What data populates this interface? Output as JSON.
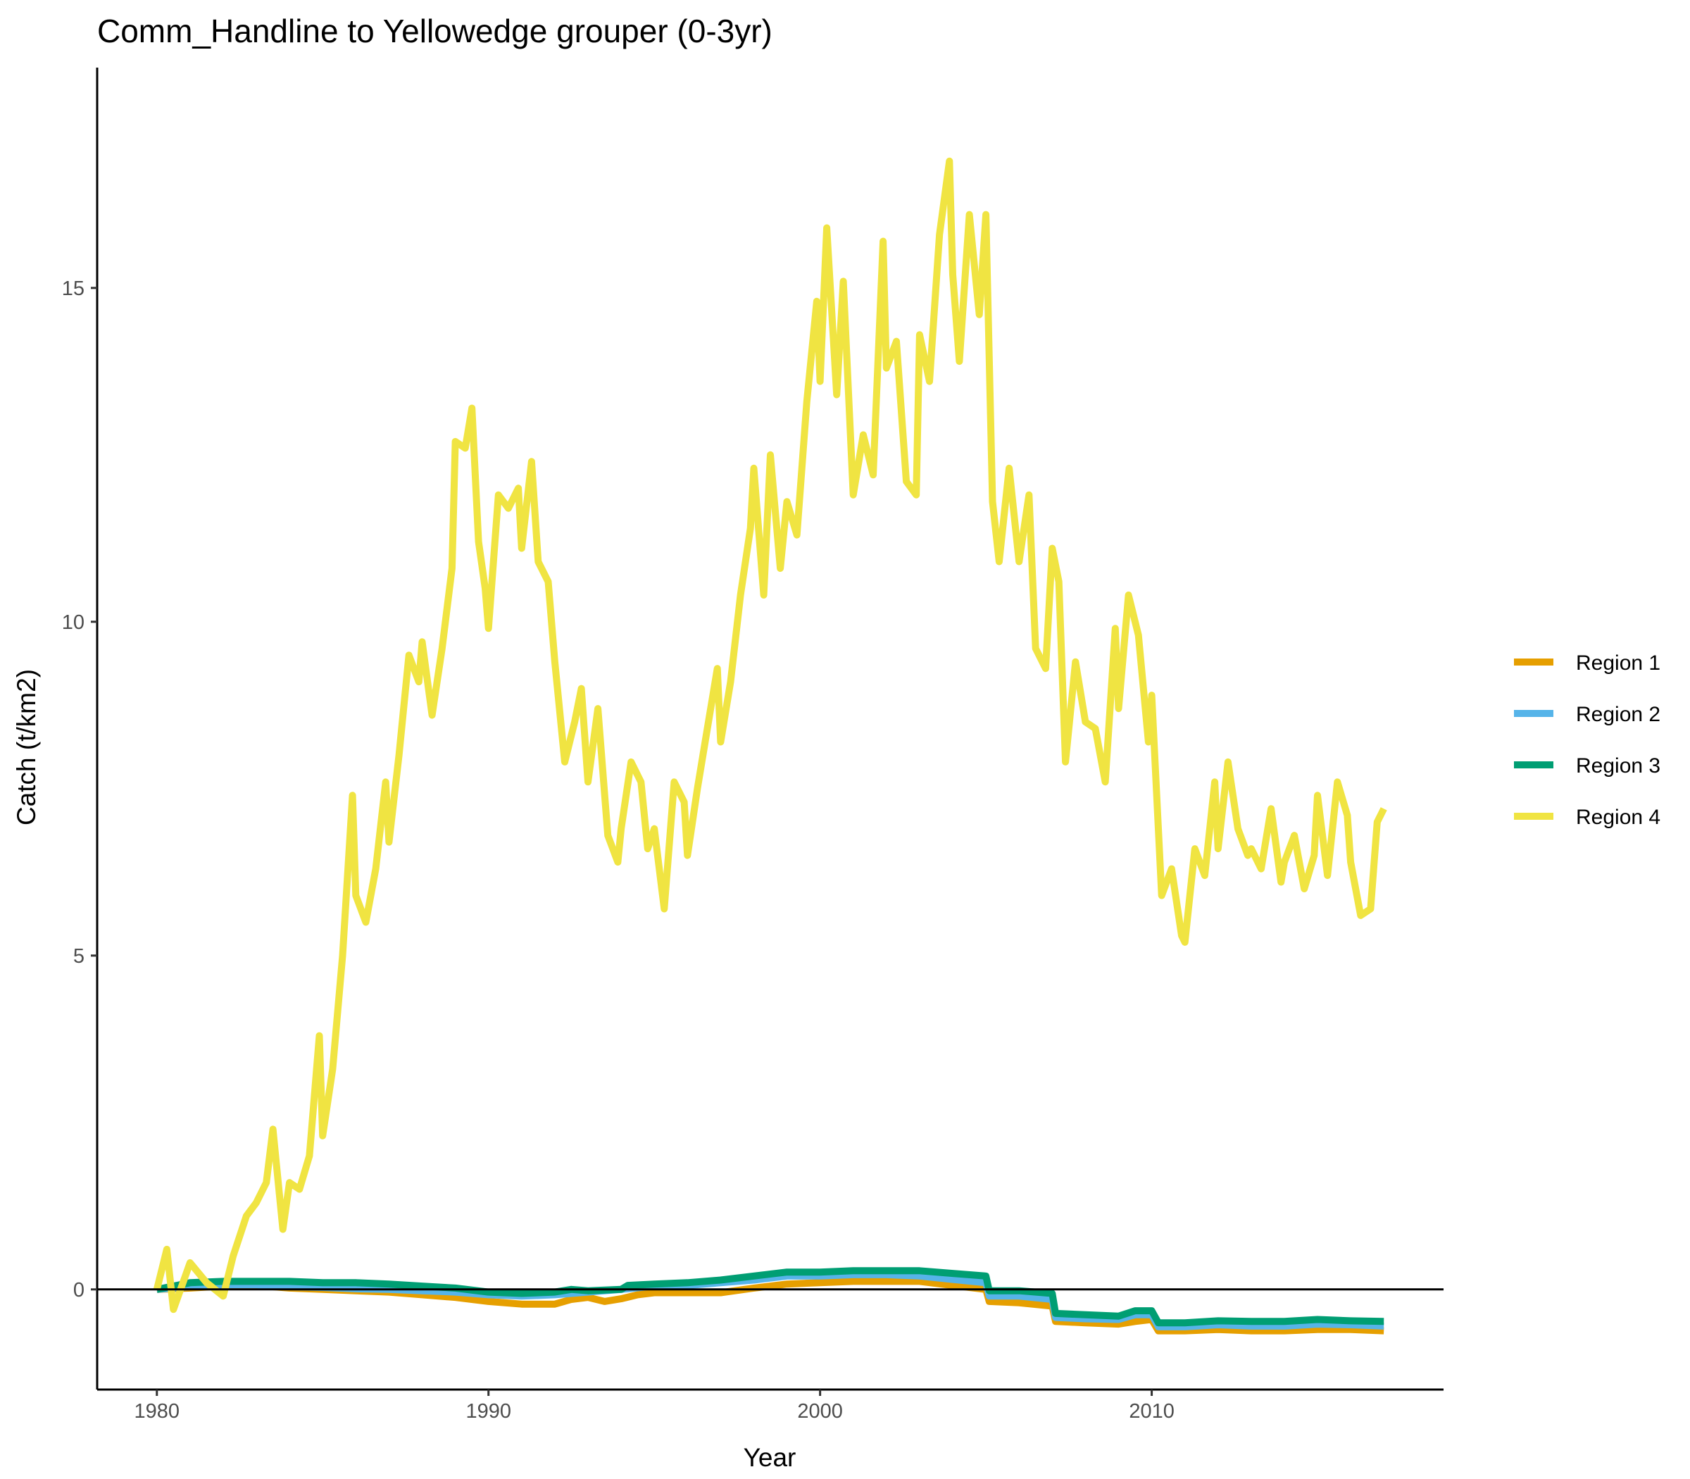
{
  "chart_data": {
    "type": "line",
    "title": "Comm_Handline to Yellowedge grouper (0-3yr)",
    "xlabel": "Year",
    "ylabel": "Catch (t/km2)",
    "xlim": [
      1978.2,
      2018.8
    ],
    "ylim": [
      -1.5,
      18.3
    ],
    "x_ticks": [
      1980,
      1990,
      2000,
      2010
    ],
    "y_ticks": [
      0,
      5,
      10,
      15
    ],
    "reference_line_y": 0,
    "grid": false,
    "legend_position": "right",
    "series": [
      {
        "name": "Region 1",
        "color": "#E69F00",
        "points": [
          [
            1980,
            0
          ],
          [
            1981,
            0.02
          ],
          [
            1982,
            0.05
          ],
          [
            1983,
            0.06
          ],
          [
            1984,
            0.02
          ],
          [
            1985,
            0.0
          ],
          [
            1986,
            -0.02
          ],
          [
            1987,
            -0.04
          ],
          [
            1988,
            -0.08
          ],
          [
            1989,
            -0.12
          ],
          [
            1990,
            -0.18
          ],
          [
            1991,
            -0.22
          ],
          [
            1992,
            -0.22
          ],
          [
            1992.5,
            -0.15
          ],
          [
            1993,
            -0.12
          ],
          [
            1993.5,
            -0.18
          ],
          [
            1994,
            -0.14
          ],
          [
            1994.5,
            -0.08
          ],
          [
            1995,
            -0.05
          ],
          [
            1996,
            -0.05
          ],
          [
            1997,
            -0.05
          ],
          [
            1998,
            0.02
          ],
          [
            1999,
            0.08
          ],
          [
            2000,
            0.1
          ],
          [
            2001,
            0.12
          ],
          [
            2002,
            0.12
          ],
          [
            2003,
            0.12
          ],
          [
            2004,
            0.06
          ],
          [
            2005,
            0.0
          ],
          [
            2005.1,
            -0.18
          ],
          [
            2006,
            -0.2
          ],
          [
            2007,
            -0.25
          ],
          [
            2007.1,
            -0.48
          ],
          [
            2008,
            -0.5
          ],
          [
            2009,
            -0.52
          ],
          [
            2009.5,
            -0.48
          ],
          [
            2010,
            -0.45
          ],
          [
            2010.2,
            -0.62
          ],
          [
            2011,
            -0.62
          ],
          [
            2012,
            -0.6
          ],
          [
            2013,
            -0.62
          ],
          [
            2014,
            -0.62
          ],
          [
            2015,
            -0.6
          ],
          [
            2016,
            -0.6
          ],
          [
            2017,
            -0.62
          ]
        ]
      },
      {
        "name": "Region 2",
        "color": "#56B4E9",
        "points": [
          [
            1980,
            0
          ],
          [
            1981,
            0.04
          ],
          [
            1982,
            0.07
          ],
          [
            1983,
            0.07
          ],
          [
            1984,
            0.04
          ],
          [
            1985,
            0.03
          ],
          [
            1986,
            0.01
          ],
          [
            1987,
            0.0
          ],
          [
            1988,
            -0.02
          ],
          [
            1989,
            -0.04
          ],
          [
            1990,
            -0.08
          ],
          [
            1991,
            -0.1
          ],
          [
            1992,
            -0.08
          ],
          [
            1993,
            -0.04
          ],
          [
            1994,
            0.0
          ],
          [
            1995,
            0.05
          ],
          [
            1996,
            0.06
          ],
          [
            1997,
            0.1
          ],
          [
            1998,
            0.14
          ],
          [
            1999,
            0.2
          ],
          [
            2000,
            0.2
          ],
          [
            2001,
            0.22
          ],
          [
            2002,
            0.22
          ],
          [
            2003,
            0.2
          ],
          [
            2004,
            0.15
          ],
          [
            2005,
            0.1
          ],
          [
            2005.1,
            -0.1
          ],
          [
            2006,
            -0.1
          ],
          [
            2007,
            -0.15
          ],
          [
            2007.1,
            -0.42
          ],
          [
            2008,
            -0.44
          ],
          [
            2009,
            -0.45
          ],
          [
            2009.5,
            -0.38
          ],
          [
            2010,
            -0.38
          ],
          [
            2010.2,
            -0.56
          ],
          [
            2011,
            -0.56
          ],
          [
            2012,
            -0.53
          ],
          [
            2013,
            -0.55
          ],
          [
            2014,
            -0.55
          ],
          [
            2015,
            -0.52
          ],
          [
            2016,
            -0.53
          ],
          [
            2017,
            -0.55
          ]
        ]
      },
      {
        "name": "Region 3",
        "color": "#009E73",
        "points": [
          [
            1980,
            0
          ],
          [
            1981,
            0.1
          ],
          [
            1982,
            0.12
          ],
          [
            1983,
            0.12
          ],
          [
            1984,
            0.12
          ],
          [
            1985,
            0.1
          ],
          [
            1986,
            0.1
          ],
          [
            1987,
            0.08
          ],
          [
            1988,
            0.05
          ],
          [
            1989,
            0.02
          ],
          [
            1990,
            -0.04
          ],
          [
            1991,
            -0.06
          ],
          [
            1992,
            -0.04
          ],
          [
            1992.5,
            0.0
          ],
          [
            1993,
            -0.02
          ],
          [
            1994,
            0.0
          ],
          [
            1994.2,
            0.06
          ],
          [
            1995,
            0.08
          ],
          [
            1996,
            0.1
          ],
          [
            1997,
            0.14
          ],
          [
            1998,
            0.2
          ],
          [
            1999,
            0.26
          ],
          [
            2000,
            0.26
          ],
          [
            2001,
            0.28
          ],
          [
            2002,
            0.28
          ],
          [
            2003,
            0.28
          ],
          [
            2004,
            0.24
          ],
          [
            2005,
            0.2
          ],
          [
            2005.1,
            -0.02
          ],
          [
            2006,
            -0.02
          ],
          [
            2007,
            -0.06
          ],
          [
            2007.1,
            -0.36
          ],
          [
            2008,
            -0.38
          ],
          [
            2009,
            -0.4
          ],
          [
            2009.5,
            -0.32
          ],
          [
            2010,
            -0.32
          ],
          [
            2010.2,
            -0.5
          ],
          [
            2011,
            -0.5
          ],
          [
            2012,
            -0.47
          ],
          [
            2013,
            -0.48
          ],
          [
            2014,
            -0.48
          ],
          [
            2015,
            -0.45
          ],
          [
            2016,
            -0.47
          ],
          [
            2017,
            -0.48
          ]
        ]
      },
      {
        "name": "Region 4",
        "color": "#F0E442",
        "points": [
          [
            1980,
            0
          ],
          [
            1980.3,
            0.6
          ],
          [
            1980.5,
            -0.3
          ],
          [
            1981,
            0.4
          ],
          [
            1981.5,
            0.1
          ],
          [
            1982,
            -0.1
          ],
          [
            1982.3,
            0.5
          ],
          [
            1982.7,
            1.1
          ],
          [
            1983,
            1.3
          ],
          [
            1983.3,
            1.6
          ],
          [
            1983.5,
            2.4
          ],
          [
            1983.8,
            0.9
          ],
          [
            1984,
            1.6
          ],
          [
            1984.3,
            1.5
          ],
          [
            1984.6,
            2.0
          ],
          [
            1984.9,
            3.8
          ],
          [
            1985,
            2.3
          ],
          [
            1985.3,
            3.3
          ],
          [
            1985.6,
            5.0
          ],
          [
            1985.9,
            7.4
          ],
          [
            1986,
            5.9
          ],
          [
            1986.3,
            5.5
          ],
          [
            1986.6,
            6.3
          ],
          [
            1986.9,
            7.6
          ],
          [
            1987,
            6.7
          ],
          [
            1987.3,
            8.0
          ],
          [
            1987.6,
            9.5
          ],
          [
            1987.9,
            9.1
          ],
          [
            1988,
            9.7
          ],
          [
            1988.3,
            8.6
          ],
          [
            1988.6,
            9.6
          ],
          [
            1988.9,
            10.8
          ],
          [
            1989,
            12.7
          ],
          [
            1989.3,
            12.6
          ],
          [
            1989.5,
            13.2
          ],
          [
            1989.7,
            11.2
          ],
          [
            1989.9,
            10.5
          ],
          [
            1990,
            9.9
          ],
          [
            1990.3,
            11.9
          ],
          [
            1990.6,
            11.7
          ],
          [
            1990.9,
            12.0
          ],
          [
            1991,
            11.1
          ],
          [
            1991.3,
            12.4
          ],
          [
            1991.5,
            10.9
          ],
          [
            1991.8,
            10.6
          ],
          [
            1992,
            9.4
          ],
          [
            1992.3,
            7.9
          ],
          [
            1992.6,
            8.5
          ],
          [
            1992.8,
            9.0
          ],
          [
            1993,
            7.6
          ],
          [
            1993.3,
            8.7
          ],
          [
            1993.6,
            6.8
          ],
          [
            1993.9,
            6.4
          ],
          [
            1994,
            6.9
          ],
          [
            1994.3,
            7.9
          ],
          [
            1994.6,
            7.6
          ],
          [
            1994.8,
            6.6
          ],
          [
            1995,
            6.9
          ],
          [
            1995.3,
            5.7
          ],
          [
            1995.6,
            7.6
          ],
          [
            1995.9,
            7.3
          ],
          [
            1996,
            6.5
          ],
          [
            1996.3,
            7.5
          ],
          [
            1996.6,
            8.4
          ],
          [
            1996.9,
            9.3
          ],
          [
            1997,
            8.2
          ],
          [
            1997.3,
            9.1
          ],
          [
            1997.6,
            10.4
          ],
          [
            1997.9,
            11.4
          ],
          [
            1998,
            12.3
          ],
          [
            1998.3,
            10.4
          ],
          [
            1998.5,
            12.5
          ],
          [
            1998.8,
            10.8
          ],
          [
            1999,
            11.8
          ],
          [
            1999.3,
            11.3
          ],
          [
            1999.6,
            13.3
          ],
          [
            1999.9,
            14.8
          ],
          [
            2000,
            13.6
          ],
          [
            2000.2,
            15.9
          ],
          [
            2000.5,
            13.4
          ],
          [
            2000.7,
            15.1
          ],
          [
            2001,
            11.9
          ],
          [
            2001.3,
            12.8
          ],
          [
            2001.6,
            12.2
          ],
          [
            2001.9,
            15.7
          ],
          [
            2002,
            13.8
          ],
          [
            2002.3,
            14.2
          ],
          [
            2002.6,
            12.1
          ],
          [
            2002.9,
            11.9
          ],
          [
            2003,
            14.3
          ],
          [
            2003.3,
            13.6
          ],
          [
            2003.6,
            15.8
          ],
          [
            2003.9,
            16.9
          ],
          [
            2004,
            15.2
          ],
          [
            2004.2,
            13.9
          ],
          [
            2004.5,
            16.1
          ],
          [
            2004.8,
            14.6
          ],
          [
            2005,
            16.1
          ],
          [
            2005.2,
            11.8
          ],
          [
            2005.4,
            10.9
          ],
          [
            2005.7,
            12.3
          ],
          [
            2006,
            10.9
          ],
          [
            2006.3,
            11.9
          ],
          [
            2006.5,
            9.6
          ],
          [
            2006.8,
            9.3
          ],
          [
            2007,
            11.1
          ],
          [
            2007.2,
            10.6
          ],
          [
            2007.4,
            7.9
          ],
          [
            2007.7,
            9.4
          ],
          [
            2008,
            8.5
          ],
          [
            2008.3,
            8.4
          ],
          [
            2008.6,
            7.6
          ],
          [
            2008.9,
            9.9
          ],
          [
            2009,
            8.7
          ],
          [
            2009.3,
            10.4
          ],
          [
            2009.6,
            9.8
          ],
          [
            2009.9,
            8.2
          ],
          [
            2010,
            8.9
          ],
          [
            2010.3,
            5.9
          ],
          [
            2010.6,
            6.3
          ],
          [
            2010.9,
            5.3
          ],
          [
            2011,
            5.2
          ],
          [
            2011.3,
            6.6
          ],
          [
            2011.6,
            6.2
          ],
          [
            2011.9,
            7.6
          ],
          [
            2012,
            6.6
          ],
          [
            2012.3,
            7.9
          ],
          [
            2012.6,
            6.9
          ],
          [
            2012.9,
            6.5
          ],
          [
            2013,
            6.6
          ],
          [
            2013.3,
            6.3
          ],
          [
            2013.6,
            7.2
          ],
          [
            2013.9,
            6.1
          ],
          [
            2014,
            6.4
          ],
          [
            2014.3,
            6.8
          ],
          [
            2014.6,
            6.0
          ],
          [
            2014.9,
            6.5
          ],
          [
            2015,
            7.4
          ],
          [
            2015.3,
            6.2
          ],
          [
            2015.6,
            7.6
          ],
          [
            2015.9,
            7.1
          ],
          [
            2016,
            6.4
          ],
          [
            2016.3,
            5.6
          ],
          [
            2016.6,
            5.7
          ],
          [
            2016.8,
            7.0
          ],
          [
            2017,
            7.2
          ]
        ]
      }
    ]
  }
}
